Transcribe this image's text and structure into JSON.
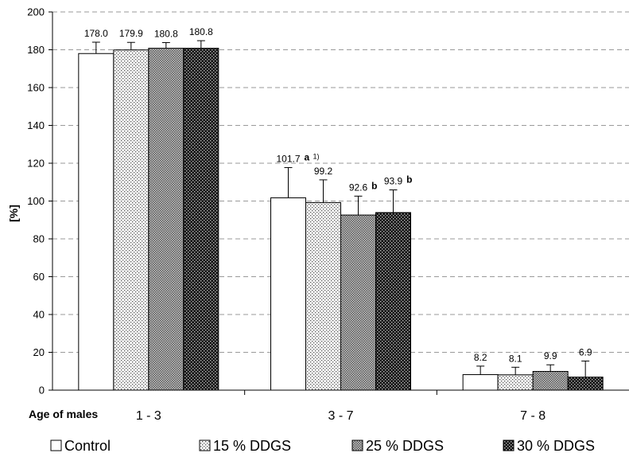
{
  "chart_data": {
    "type": "bar",
    "ylabel": "[%]",
    "xlabel": "Age of males",
    "ylim": [
      0,
      200
    ],
    "yticks": [
      0,
      20,
      40,
      60,
      80,
      100,
      120,
      140,
      160,
      180,
      200
    ],
    "grid": true,
    "legend": "bottom",
    "categories": [
      "1 - 3",
      "3 - 7",
      "7 - 8"
    ],
    "series": [
      {
        "name": "Control",
        "values": [
          178.0,
          101.7,
          8.2
        ],
        "labels": [
          "178.0",
          "101.7",
          "8.2"
        ],
        "error": [
          6.0,
          16.0,
          4.5
        ],
        "sig": [
          "",
          "a",
          ""
        ],
        "fill": "white"
      },
      {
        "name": "15 % DDGS",
        "values": [
          179.9,
          99.2,
          8.1
        ],
        "labels": [
          "179.9",
          "99.2",
          "8.1"
        ],
        "error": [
          4.0,
          12.0,
          4.0
        ],
        "sig": [
          "",
          "",
          ""
        ],
        "fill": "dots"
      },
      {
        "name": "25 % DDGS",
        "values": [
          180.8,
          92.6,
          9.9
        ],
        "labels": [
          "180.8",
          "92.6",
          "9.9"
        ],
        "error": [
          3.0,
          10.0,
          3.5
        ],
        "sig": [
          "",
          "b",
          ""
        ],
        "fill": "crosshatch"
      },
      {
        "name": "30 % DDGS",
        "values": [
          180.8,
          93.9,
          6.9
        ],
        "labels": [
          "180.8",
          "93.9",
          "6.9"
        ],
        "error": [
          4.0,
          12.0,
          8.5
        ],
        "sig": [
          "",
          "b",
          ""
        ],
        "fill": "checker"
      }
    ],
    "footnote_marker": "1)"
  }
}
